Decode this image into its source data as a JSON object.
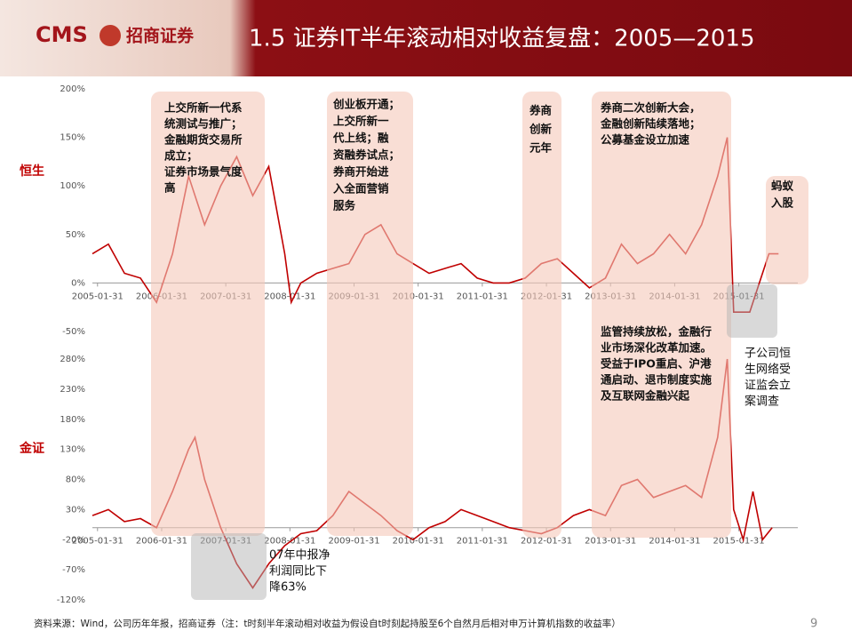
{
  "header": {
    "logo": "CMS",
    "logo_cn": "招商证券",
    "title": "1.5 证券IT半年滚动相对收益复盘：2005—2015"
  },
  "chart_data": [
    {
      "type": "line",
      "label": "恒生",
      "color": "#c00000",
      "x": [
        2005.0,
        2005.25,
        2005.5,
        2005.75,
        2006.0,
        2006.25,
        2006.5,
        2006.75,
        2007.0,
        2007.25,
        2007.5,
        2007.75,
        2008.0,
        2008.1,
        2008.25,
        2008.5,
        2008.75,
        2009.0,
        2009.25,
        2009.5,
        2009.75,
        2010.0,
        2010.25,
        2010.5,
        2010.75,
        2011.0,
        2011.25,
        2011.5,
        2011.75,
        2012.0,
        2012.25,
        2012.5,
        2012.75,
        2013.0,
        2013.25,
        2013.5,
        2013.75,
        2014.0,
        2014.25,
        2014.5,
        2014.75,
        2014.9,
        2015.0,
        2015.25,
        2015.4,
        2015.55,
        2015.7
      ],
      "values": [
        30,
        40,
        10,
        5,
        -20,
        30,
        110,
        60,
        100,
        130,
        90,
        120,
        30,
        -20,
        0,
        10,
        15,
        20,
        50,
        60,
        30,
        20,
        10,
        15,
        20,
        5,
        0,
        0,
        5,
        20,
        25,
        10,
        -5,
        5,
        40,
        20,
        30,
        50,
        30,
        60,
        110,
        150,
        -30,
        -30,
        0,
        30,
        30
      ],
      "xlim": [
        2005.0,
        2016.0
      ],
      "xticks": [
        {
          "value": 2005.08,
          "label": "2005-01-31"
        },
        {
          "value": 2006.08,
          "label": "2006-01-31"
        },
        {
          "value": 2007.08,
          "label": "2007-01-31"
        },
        {
          "value": 2008.08,
          "label": "2008-01-31"
        },
        {
          "value": 2009.08,
          "label": "2009-01-31"
        },
        {
          "value": 2010.08,
          "label": "2010-01-31"
        },
        {
          "value": 2011.08,
          "label": "2011-01-31"
        },
        {
          "value": 2012.08,
          "label": "2012-01-31"
        },
        {
          "value": 2013.08,
          "label": "2013-01-31"
        },
        {
          "value": 2014.08,
          "label": "2014-01-31"
        },
        {
          "value": 2015.08,
          "label": "2015-01-31"
        }
      ],
      "ylim": [
        -50,
        200
      ],
      "yticks": [
        {
          "value": -50,
          "label": "-50%"
        },
        {
          "value": 0,
          "label": "0%"
        },
        {
          "value": 50,
          "label": "50%"
        },
        {
          "value": 100,
          "label": "100%"
        },
        {
          "value": 150,
          "label": "150%"
        },
        {
          "value": 200,
          "label": "200%"
        }
      ],
      "annotations": [
        [
          "上交所新一代系",
          "统测试与推广；",
          "金融期货交易所",
          "成立；",
          "证券市场景气度",
          "高"
        ],
        [
          "创业板开通；",
          "上交所新一",
          "代上线；融",
          "资融券试点；",
          "券商开始进",
          "入全面营销",
          "服务"
        ],
        [
          "券商",
          "创新",
          "元年"
        ],
        [
          "券商二次创新大会，",
          "金融创新陆续落地；",
          "公募基金设立加速"
        ],
        [
          "蚂蚁",
          "入股"
        ]
      ]
    },
    {
      "type": "line",
      "label": "金证",
      "color": "#c00000",
      "x": [
        2005.0,
        2005.25,
        2005.5,
        2005.75,
        2006.0,
        2006.25,
        2006.5,
        2006.6,
        2006.75,
        2007.0,
        2007.25,
        2007.5,
        2007.75,
        2008.0,
        2008.25,
        2008.5,
        2008.75,
        2009.0,
        2009.25,
        2009.5,
        2009.75,
        2010.0,
        2010.25,
        2010.5,
        2010.75,
        2011.0,
        2011.25,
        2011.5,
        2011.75,
        2012.0,
        2012.25,
        2012.5,
        2012.75,
        2013.0,
        2013.25,
        2013.5,
        2013.75,
        2014.0,
        2014.25,
        2014.5,
        2014.75,
        2014.9,
        2015.0,
        2015.15,
        2015.3,
        2015.45,
        2015.6
      ],
      "values": [
        20,
        30,
        10,
        15,
        0,
        60,
        130,
        150,
        80,
        0,
        -60,
        -100,
        -60,
        -30,
        -10,
        -5,
        20,
        60,
        40,
        20,
        -5,
        -20,
        0,
        10,
        30,
        20,
        10,
        0,
        -5,
        -10,
        0,
        20,
        30,
        20,
        70,
        80,
        50,
        60,
        70,
        50,
        150,
        280,
        30,
        -20,
        60,
        -20,
        0
      ],
      "xlim": [
        2005.0,
        2016.0
      ],
      "xticks": [
        {
          "value": 2005.08,
          "label": "2005-01-31"
        },
        {
          "value": 2006.08,
          "label": "2006-01-31"
        },
        {
          "value": 2007.08,
          "label": "2007-01-31"
        },
        {
          "value": 2008.08,
          "label": "2008-01-31"
        },
        {
          "value": 2009.08,
          "label": "2009-01-31"
        },
        {
          "value": 2010.08,
          "label": "2010-01-31"
        },
        {
          "value": 2011.08,
          "label": "2011-01-31"
        },
        {
          "value": 2012.08,
          "label": "2012-01-31"
        },
        {
          "value": 2013.08,
          "label": "2013-01-31"
        },
        {
          "value": 2014.08,
          "label": "2014-01-31"
        },
        {
          "value": 2015.08,
          "label": "2015-01-31"
        }
      ],
      "ylim": [
        -120,
        280
      ],
      "yticks": [
        {
          "value": -120,
          "label": "-120%"
        },
        {
          "value": -70,
          "label": "-70%"
        },
        {
          "value": -20,
          "label": "-20%"
        },
        {
          "value": 30,
          "label": "30%"
        },
        {
          "value": 80,
          "label": "80%"
        },
        {
          "value": 130,
          "label": "130%"
        },
        {
          "value": 180,
          "label": "180%"
        },
        {
          "value": 230,
          "label": "230%"
        },
        {
          "value": 280,
          "label": "280%"
        }
      ],
      "annotations": [
        [
          "监管持续放松，金融行",
          "业市场深化改革加速。",
          "受益于IPO重启、沪港",
          "通启动、退市制度实施",
          "及互联网金融兴起"
        ],
        [
          "07年中报净",
          "利润同比下",
          "降63%"
        ],
        [
          "子公司恒",
          "生网络受",
          "证监会立",
          "案调查"
        ]
      ]
    }
  ],
  "footer": {
    "source": "资料来源：Wind，公司历年年报，招商证券（注：t时刻半年滚动相对收益为假设自t时刻起持股至6个自然月后相对申万计算机指数的收益率）",
    "page": "9"
  }
}
